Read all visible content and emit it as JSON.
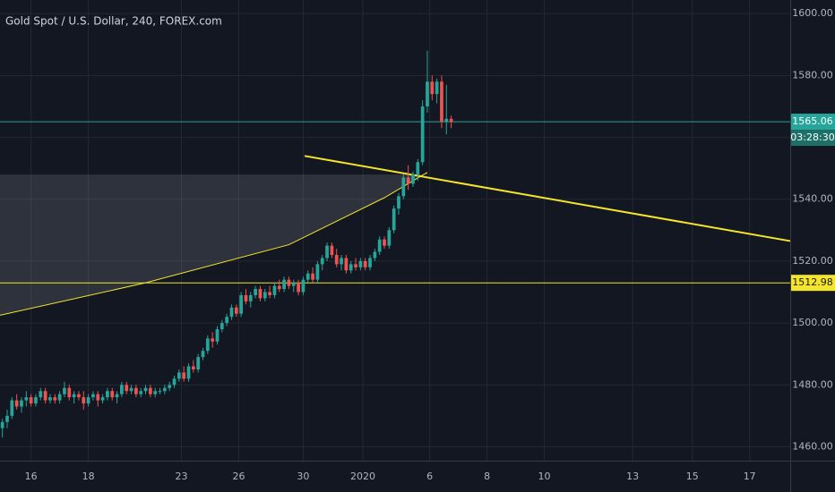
{
  "chart_data": {
    "type": "candlestick",
    "title": "Gold Spot / U.S. Dollar, 240, FOREX.com",
    "up_color": "#26a69a",
    "down_color": "#ef5350",
    "grid": true,
    "ylim": [
      1455.5,
      1604.4
    ],
    "yticks": [
      {
        "value": 1460,
        "label": "1460.00"
      },
      {
        "value": 1480,
        "label": "1480.00"
      },
      {
        "value": 1500,
        "label": "1500.00"
      },
      {
        "value": 1520,
        "label": "1520.00"
      },
      {
        "value": 1540,
        "label": "1540.00"
      },
      {
        "value": 1560,
        "label": "1560.00"
      },
      {
        "value": 1580,
        "label": "1580.00"
      },
      {
        "value": 1600,
        "label": "1600.00"
      }
    ],
    "xlim": [
      -0.5,
      165
    ],
    "xticks": [
      {
        "value": 6,
        "label": "16"
      },
      {
        "value": 18,
        "label": "18"
      },
      {
        "value": 37.5,
        "label": "23"
      },
      {
        "value": 49.5,
        "label": "26"
      },
      {
        "value": 63,
        "label": "30"
      },
      {
        "value": 75.5,
        "label": "2020"
      },
      {
        "value": 89.5,
        "label": "6"
      },
      {
        "value": 101.5,
        "label": "8"
      },
      {
        "value": 113.5,
        "label": "10"
      },
      {
        "value": 132,
        "label": "13"
      },
      {
        "value": 144.5,
        "label": "15"
      },
      {
        "value": 156.5,
        "label": "17"
      }
    ],
    "candles": [
      [
        1466,
        1469,
        1463,
        1468
      ],
      [
        1468,
        1472,
        1466,
        1470
      ],
      [
        1470,
        1476,
        1469,
        1475
      ],
      [
        1475,
        1477,
        1472,
        1473
      ],
      [
        1473,
        1476,
        1471,
        1475
      ],
      [
        1475,
        1478,
        1473,
        1476
      ],
      [
        1476,
        1477,
        1473,
        1474
      ],
      [
        1474,
        1477,
        1473,
        1476
      ],
      [
        1476,
        1479,
        1475,
        1478
      ],
      [
        1478,
        1479,
        1474,
        1475
      ],
      [
        1475,
        1477,
        1474,
        1476
      ],
      [
        1476,
        1477,
        1474,
        1475
      ],
      [
        1475,
        1478,
        1474,
        1477
      ],
      [
        1477,
        1481,
        1476,
        1479
      ],
      [
        1479,
        1480,
        1475,
        1476
      ],
      [
        1476,
        1478,
        1474,
        1477
      ],
      [
        1477,
        1478,
        1475,
        1476
      ],
      [
        1476,
        1478,
        1472,
        1474
      ],
      [
        1474,
        1477,
        1473,
        1476
      ],
      [
        1476,
        1478,
        1475,
        1477
      ],
      [
        1477,
        1478,
        1473,
        1475
      ],
      [
        1475,
        1477,
        1474,
        1476
      ],
      [
        1476,
        1479,
        1475,
        1478
      ],
      [
        1478,
        1479,
        1475,
        1476
      ],
      [
        1476,
        1478,
        1474,
        1477
      ],
      [
        1477,
        1481,
        1476,
        1480
      ],
      [
        1480,
        1481,
        1477,
        1478
      ],
      [
        1478,
        1480,
        1477,
        1479
      ],
      [
        1479,
        1480,
        1476,
        1477
      ],
      [
        1477,
        1479,
        1476,
        1478
      ],
      [
        1478,
        1480,
        1477,
        1479
      ],
      [
        1479,
        1480,
        1476,
        1477
      ],
      [
        1477,
        1479,
        1476,
        1478
      ],
      [
        1478,
        1479,
        1477,
        1478
      ],
      [
        1478,
        1480,
        1477,
        1479
      ],
      [
        1479,
        1481,
        1478,
        1480
      ],
      [
        1480,
        1483,
        1479,
        1482
      ],
      [
        1482,
        1485,
        1481,
        1484
      ],
      [
        1484,
        1486,
        1481,
        1482
      ],
      [
        1482,
        1487,
        1481,
        1486
      ],
      [
        1486,
        1488,
        1484,
        1485
      ],
      [
        1485,
        1490,
        1484,
        1489
      ],
      [
        1489,
        1492,
        1488,
        1491
      ],
      [
        1491,
        1496,
        1490,
        1495
      ],
      [
        1495,
        1497,
        1492,
        1494
      ],
      [
        1494,
        1499,
        1493,
        1498
      ],
      [
        1498,
        1501,
        1497,
        1500
      ],
      [
        1500,
        1503,
        1499,
        1502
      ],
      [
        1502,
        1506,
        1501,
        1505
      ],
      [
        1505,
        1506,
        1502,
        1503
      ],
      [
        1503,
        1510,
        1502,
        1509
      ],
      [
        1509,
        1511,
        1506,
        1507
      ],
      [
        1507,
        1510,
        1505,
        1509
      ],
      [
        1509,
        1512,
        1508,
        1511
      ],
      [
        1511,
        1512,
        1507,
        1508
      ],
      [
        1508,
        1511,
        1507,
        1510
      ],
      [
        1510,
        1512,
        1508,
        1509
      ],
      [
        1509,
        1513,
        1508,
        1512
      ],
      [
        1512,
        1514,
        1510,
        1511
      ],
      [
        1511,
        1515,
        1510,
        1514
      ],
      [
        1514,
        1515,
        1511,
        1512
      ],
      [
        1512,
        1514,
        1510,
        1513
      ],
      [
        1513,
        1514,
        1509,
        1510
      ],
      [
        1510,
        1515,
        1509,
        1514
      ],
      [
        1514,
        1517,
        1513,
        1516
      ],
      [
        1516,
        1518,
        1513,
        1514
      ],
      [
        1514,
        1520,
        1513,
        1519
      ],
      [
        1519,
        1522,
        1517,
        1521
      ],
      [
        1521,
        1526,
        1520,
        1525
      ],
      [
        1525,
        1526,
        1521,
        1522
      ],
      [
        1522,
        1524,
        1518,
        1519
      ],
      [
        1519,
        1522,
        1517,
        1521
      ],
      [
        1521,
        1522,
        1516,
        1517
      ],
      [
        1517,
        1520,
        1516,
        1519
      ],
      [
        1519,
        1521,
        1517,
        1518
      ],
      [
        1518,
        1521,
        1517,
        1520
      ],
      [
        1520,
        1521,
        1517,
        1518
      ],
      [
        1518,
        1522,
        1517,
        1521
      ],
      [
        1521,
        1524,
        1520,
        1523
      ],
      [
        1523,
        1528,
        1522,
        1527
      ],
      [
        1527,
        1528,
        1524,
        1525
      ],
      [
        1525,
        1531,
        1524,
        1530
      ],
      [
        1530,
        1538,
        1529,
        1537
      ],
      [
        1537,
        1542,
        1535,
        1541
      ],
      [
        1541,
        1548,
        1540,
        1547
      ],
      [
        1547,
        1551,
        1543,
        1545
      ],
      [
        1545,
        1549,
        1544,
        1548
      ],
      [
        1548,
        1553,
        1546,
        1552
      ],
      [
        1552,
        1572,
        1551,
        1570
      ],
      [
        1570,
        1588,
        1568,
        1578
      ],
      [
        1578,
        1580,
        1572,
        1574
      ],
      [
        1574,
        1579,
        1571,
        1578
      ],
      [
        1578,
        1580,
        1563,
        1565
      ],
      [
        1565,
        1577,
        1561,
        1566
      ],
      [
        1566,
        1567,
        1563,
        1565
      ]
    ],
    "price_lines": [
      {
        "value": 1565.06,
        "label": "1565.06",
        "color": "#26a69a"
      },
      {
        "value": 1512.98,
        "label": "1512.98",
        "color": "#f5e52a"
      }
    ],
    "countdown": "03:28:30",
    "trendline": {
      "x": [
        63.3,
        165
      ],
      "y": [
        1554,
        1526.5
      ],
      "color": "#f5e52a"
    },
    "curve": {
      "x": [
        -0.5,
        30,
        60,
        80,
        89
      ],
      "y": [
        1502.5,
        1513,
        1525.3,
        1540.5,
        1548.7
      ],
      "color": "#f5e52a"
    },
    "zone_top": 1548
  }
}
